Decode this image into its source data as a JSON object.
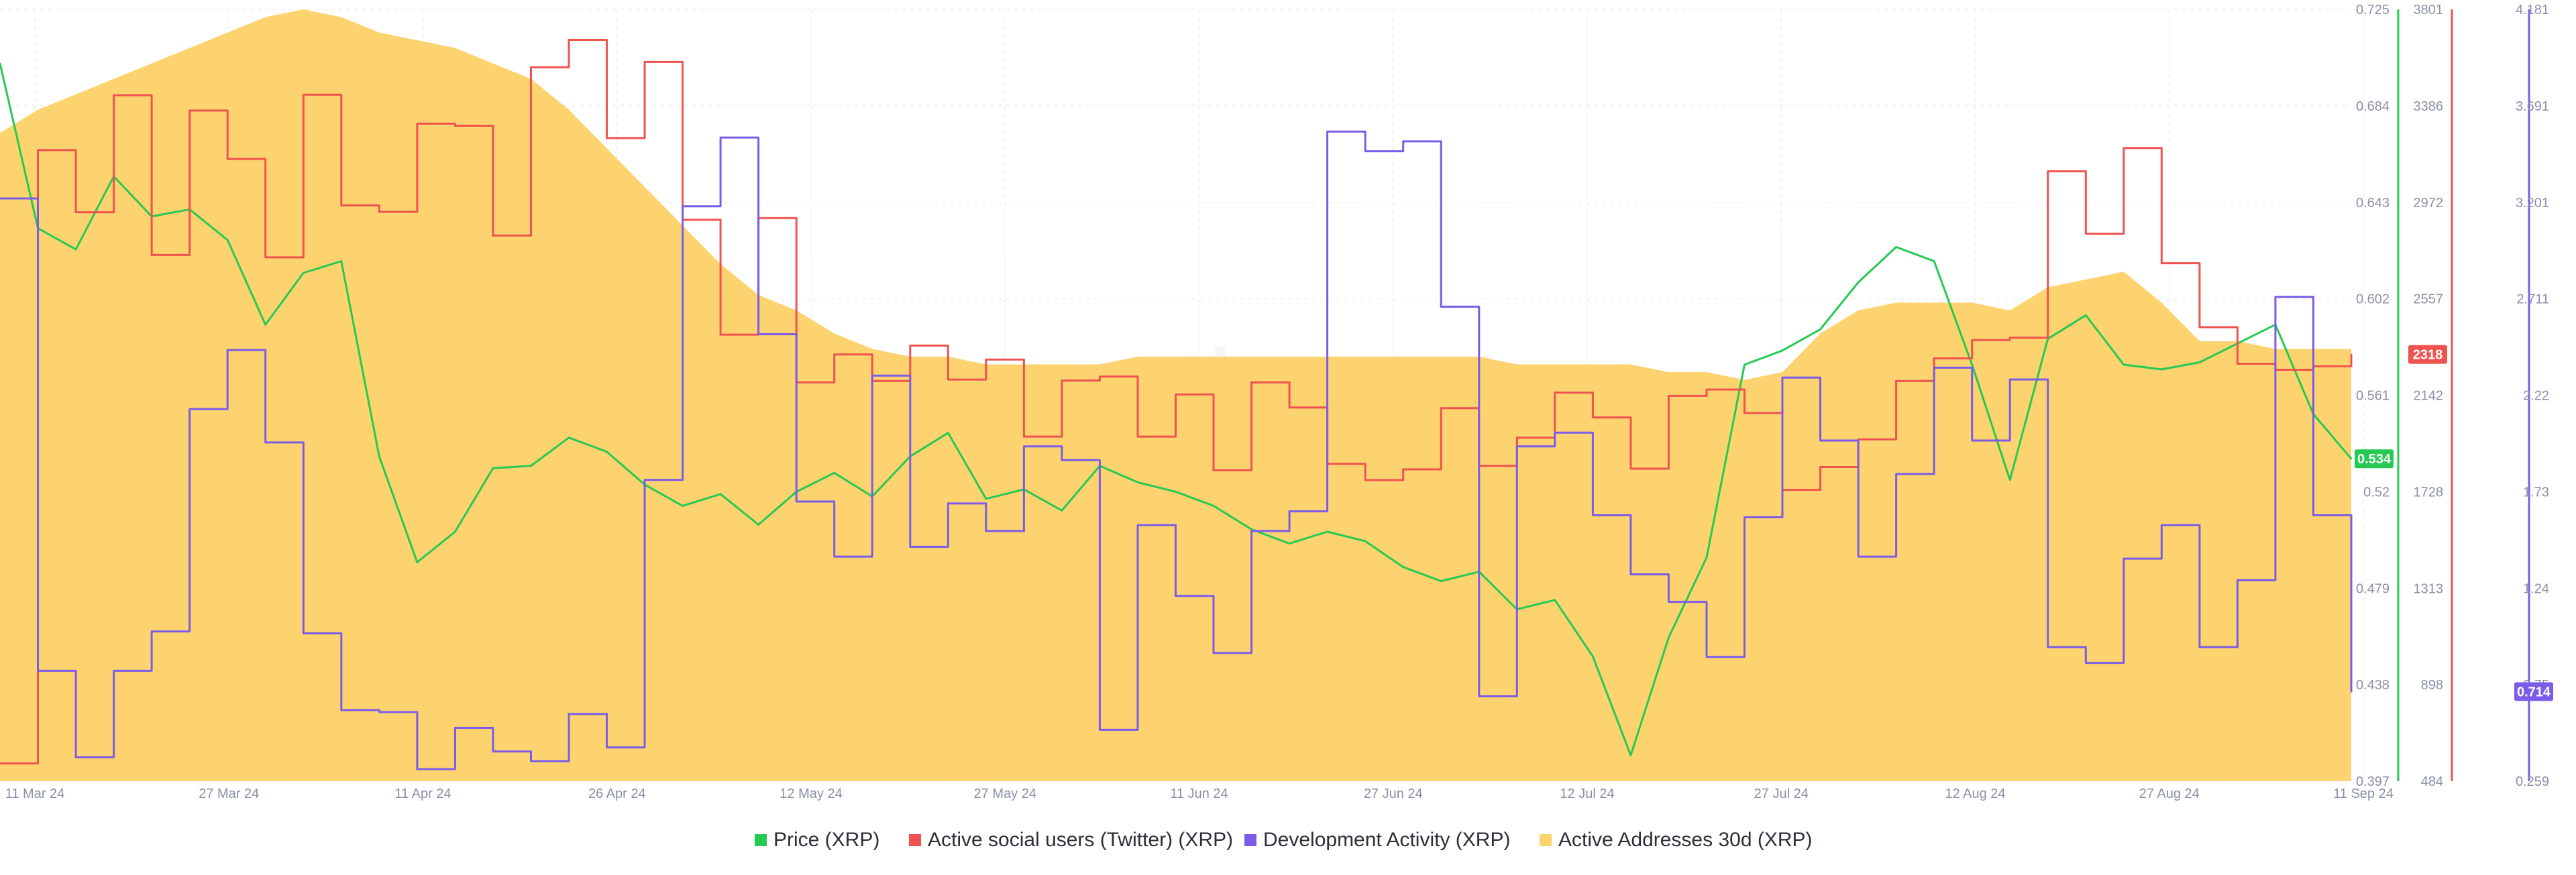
{
  "chart_data": {
    "type": "line",
    "watermark": "santiment",
    "x_tick_labels": [
      "11 Mar 24",
      "27 Mar 24",
      "11 Apr 24",
      "26 Apr 24",
      "12 May 24",
      "27 May 24",
      "11 Jun 24",
      "27 Jun 24",
      "12 Jul 24",
      "27 Jul 24",
      "12 Aug 24",
      "27 Aug 24",
      "11 Sep 24"
    ],
    "series": [
      {
        "name": "Price (XRP)",
        "color": "#26c953",
        "axis": "price",
        "kind": "line",
        "last_value_label": "0.534",
        "x": [
          0,
          3,
          6,
          9,
          12,
          15,
          18,
          21,
          24,
          27,
          30,
          33,
          36,
          39,
          42,
          45,
          48,
          51,
          54,
          57,
          60,
          63,
          66,
          69,
          72,
          75,
          78,
          81,
          84,
          87,
          90,
          93,
          96,
          99,
          102,
          105,
          108,
          111,
          114,
          117,
          120,
          123,
          126,
          129,
          132,
          135,
          138,
          141,
          144,
          147,
          150,
          153,
          156,
          159,
          162,
          165,
          168,
          171,
          174,
          177,
          180,
          183,
          186
        ],
        "values": [
          0.702,
          0.632,
          0.623,
          0.654,
          0.637,
          0.64,
          0.627,
          0.591,
          0.613,
          0.618,
          0.535,
          0.49,
          0.503,
          0.53,
          0.531,
          0.543,
          0.537,
          0.523,
          0.514,
          0.519,
          0.506,
          0.52,
          0.528,
          0.518,
          0.535,
          0.545,
          0.517,
          0.521,
          0.512,
          0.531,
          0.524,
          0.52,
          0.514,
          0.504,
          0.498,
          0.503,
          0.499,
          0.488,
          0.482,
          0.486,
          0.47,
          0.474,
          0.45,
          0.408,
          0.458,
          0.492,
          0.574,
          0.58,
          0.589,
          0.609,
          0.624,
          0.618,
          0.574,
          0.525,
          0.585,
          0.595,
          0.574,
          0.572,
          0.575,
          0.583,
          0.591,
          0.553,
          0.534
        ],
        "axis_ticks": [
          "0.725",
          "0.684",
          "0.643",
          "0.602",
          "0.561",
          "0.52",
          "0.479",
          "0.438",
          "0.397"
        ],
        "axis_range": [
          0.397,
          0.725
        ]
      },
      {
        "name": "Active social users (Twitter) (XRP)",
        "color": "#ef5350",
        "axis": "social",
        "kind": "line",
        "last_value_label": "2318",
        "x": [
          0,
          3,
          6,
          9,
          12,
          15,
          18,
          21,
          24,
          27,
          30,
          33,
          36,
          39,
          42,
          45,
          48,
          51,
          54,
          57,
          60,
          63,
          66,
          69,
          72,
          75,
          78,
          81,
          84,
          87,
          90,
          93,
          96,
          99,
          102,
          105,
          108,
          111,
          114,
          117,
          120,
          123,
          126,
          129,
          132,
          135,
          138,
          141,
          144,
          147,
          150,
          153,
          156,
          159,
          162,
          165,
          168,
          171,
          174,
          177,
          180,
          183,
          186
        ],
        "values": [
          560,
          3196,
          2929,
          3432,
          2745,
          3366,
          3158,
          2735,
          3434,
          2959,
          2931,
          3310,
          3301,
          2829,
          3552,
          3670,
          3248,
          3575,
          2897,
          2403,
          2904,
          2198,
          2318,
          2204,
          2356,
          2210,
          2296,
          1965,
          2206,
          2223,
          1965,
          2146,
          1820,
          2198,
          2090,
          1848,
          1778,
          1824,
          2087,
          1839,
          1960,
          2154,
          2047,
          1827,
          2140,
          2167,
          2066,
          1736,
          1834,
          1953,
          2204,
          2301,
          2380,
          2390,
          3105,
          2837,
          3205,
          2710,
          2435,
          2278,
          2252,
          2267,
          2318
        ],
        "axis_ticks": [
          "3801",
          "3386",
          "2972",
          "2557",
          "2142",
          "1728",
          "1313",
          "898",
          "484"
        ],
        "axis_range": [
          484,
          3801
        ]
      },
      {
        "name": "Development Activity (XRP)",
        "color": "#7b5ce8",
        "axis": "dev",
        "kind": "line",
        "last_value_label": "0.714",
        "x": [
          0,
          3,
          6,
          9,
          12,
          15,
          18,
          21,
          24,
          27,
          30,
          33,
          36,
          39,
          42,
          45,
          48,
          51,
          54,
          57,
          60,
          63,
          66,
          69,
          72,
          75,
          78,
          81,
          84,
          87,
          90,
          93,
          96,
          99,
          102,
          105,
          108,
          111,
          114,
          117,
          120,
          123,
          126,
          129,
          132,
          135,
          138,
          141,
          144,
          147,
          150,
          153,
          156,
          159,
          162,
          165,
          168,
          171,
          174,
          177,
          180,
          183,
          186
        ],
        "values": [
          3.22,
          0.82,
          0.38,
          0.82,
          1.02,
          2.15,
          2.45,
          1.98,
          1.01,
          0.62,
          0.61,
          0.32,
          0.53,
          0.41,
          0.36,
          0.6,
          0.43,
          1.79,
          3.18,
          3.53,
          2.53,
          1.68,
          1.4,
          2.32,
          1.45,
          1.67,
          1.53,
          1.96,
          1.89,
          0.52,
          1.56,
          1.2,
          0.91,
          1.53,
          1.63,
          3.56,
          3.46,
          3.51,
          2.67,
          0.69,
          1.96,
          2.03,
          1.61,
          1.31,
          1.17,
          0.89,
          1.6,
          2.31,
          1.99,
          1.4,
          1.82,
          2.36,
          1.99,
          2.3,
          0.94,
          0.86,
          1.39,
          1.56,
          0.94,
          1.28,
          2.72,
          1.61,
          0.714
        ],
        "axis_ticks": [
          "4.181",
          "3.691",
          "3.201",
          "2.711",
          "2.22",
          "1.73",
          "1.24",
          "0.75",
          "0.259"
        ],
        "axis_range": [
          0.259,
          4.181
        ]
      },
      {
        "name": "Active Addresses 30d (XRP)",
        "color": "#fdd36f",
        "axis": "hidden",
        "kind": "area",
        "x": [
          0,
          3,
          6,
          9,
          12,
          15,
          18,
          21,
          24,
          27,
          30,
          33,
          36,
          39,
          42,
          45,
          48,
          51,
          54,
          57,
          60,
          63,
          66,
          69,
          72,
          75,
          78,
          81,
          84,
          87,
          90,
          93,
          96,
          99,
          102,
          105,
          108,
          111,
          114,
          117,
          120,
          123,
          126,
          129,
          132,
          135,
          138,
          141,
          144,
          147,
          150,
          153,
          156,
          159,
          162,
          165,
          168,
          171,
          174,
          177,
          180,
          183,
          186
        ],
        "values": [
          84,
          87,
          89,
          91,
          93,
          95,
          97,
          99,
          100,
          99,
          97,
          96,
          95,
          93,
          91,
          87,
          82,
          77,
          72,
          67,
          63,
          61,
          58,
          56,
          55,
          55,
          54,
          54,
          54,
          54,
          55,
          55,
          55,
          55,
          55,
          55,
          55,
          55,
          55,
          55,
          54,
          54,
          54,
          54,
          53,
          53,
          52,
          53,
          58,
          61,
          62,
          62,
          62,
          61,
          64,
          65,
          66,
          62,
          57,
          57,
          56,
          56,
          56
        ],
        "axis_range": [
          0,
          100
        ]
      }
    ],
    "legend": [
      {
        "label": "Price (XRP)",
        "color": "#26c953"
      },
      {
        "label": "Active social users (Twitter) (XRP)",
        "color": "#ef5350"
      },
      {
        "label": "Development Activity (XRP)",
        "color": "#7b5ce8"
      },
      {
        "label": "Active Addresses 30d (XRP)",
        "color": "#fdd36f"
      }
    ]
  }
}
